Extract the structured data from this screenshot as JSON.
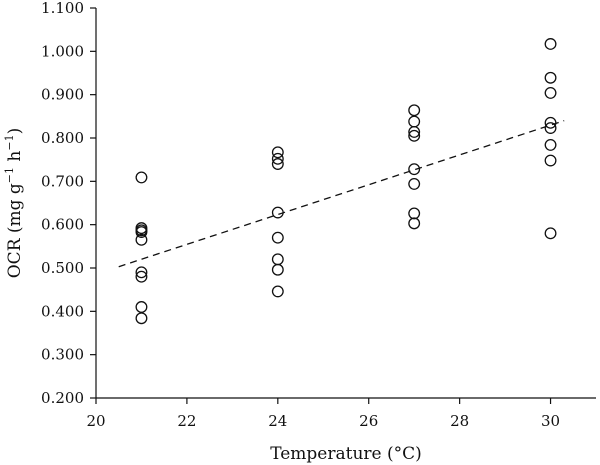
{
  "chart_data": {
    "type": "scatter",
    "title": "",
    "xlabel": "Temperature (°C)",
    "ylabel": {
      "base": "OCR (mg g",
      "sup1": "−1",
      "mid": " h",
      "sup2": "−1",
      "end": ")"
    },
    "xlim": [
      20,
      31
    ],
    "ylim": [
      0.2,
      1.1
    ],
    "xticks": [
      20,
      22,
      24,
      26,
      28,
      30
    ],
    "xtick_labels": [
      "20",
      "22",
      "24",
      "26",
      "28",
      "30"
    ],
    "yticks": [
      0.2,
      0.3,
      0.4,
      0.5,
      0.6,
      0.7,
      0.8,
      0.9,
      1.0,
      1.1
    ],
    "ytick_labels": [
      "0.200",
      "0.300",
      "0.400",
      "0.500",
      "0.600",
      "0.700",
      "0.800",
      "0.900",
      "1.000",
      "1.100"
    ],
    "grid": false,
    "marker": "open-circle",
    "points": [
      {
        "x": 21,
        "y": 0.709
      },
      {
        "x": 21,
        "y": 0.592
      },
      {
        "x": 21,
        "y": 0.587
      },
      {
        "x": 21,
        "y": 0.583
      },
      {
        "x": 21,
        "y": 0.565
      },
      {
        "x": 21,
        "y": 0.49
      },
      {
        "x": 21,
        "y": 0.48
      },
      {
        "x": 21,
        "y": 0.41
      },
      {
        "x": 21,
        "y": 0.384
      },
      {
        "x": 24,
        "y": 0.767
      },
      {
        "x": 24,
        "y": 0.752
      },
      {
        "x": 24,
        "y": 0.74
      },
      {
        "x": 24,
        "y": 0.628
      },
      {
        "x": 24,
        "y": 0.57
      },
      {
        "x": 24,
        "y": 0.52
      },
      {
        "x": 24,
        "y": 0.496
      },
      {
        "x": 24,
        "y": 0.446
      },
      {
        "x": 27,
        "y": 0.864
      },
      {
        "x": 27,
        "y": 0.838
      },
      {
        "x": 27,
        "y": 0.814
      },
      {
        "x": 27,
        "y": 0.805
      },
      {
        "x": 27,
        "y": 0.728
      },
      {
        "x": 27,
        "y": 0.694
      },
      {
        "x": 27,
        "y": 0.626
      },
      {
        "x": 27,
        "y": 0.603
      },
      {
        "x": 30,
        "y": 1.017
      },
      {
        "x": 30,
        "y": 0.939
      },
      {
        "x": 30,
        "y": 0.904
      },
      {
        "x": 30,
        "y": 0.835
      },
      {
        "x": 30,
        "y": 0.823
      },
      {
        "x": 30,
        "y": 0.784
      },
      {
        "x": 30,
        "y": 0.748
      },
      {
        "x": 30,
        "y": 0.58
      }
    ],
    "trendline": {
      "style": "dashed",
      "from": {
        "x": 20.5,
        "y": 0.503
      },
      "to": {
        "x": 30.3,
        "y": 0.84
      }
    },
    "colors": {
      "ink": "#111111",
      "background": "#ffffff"
    }
  }
}
